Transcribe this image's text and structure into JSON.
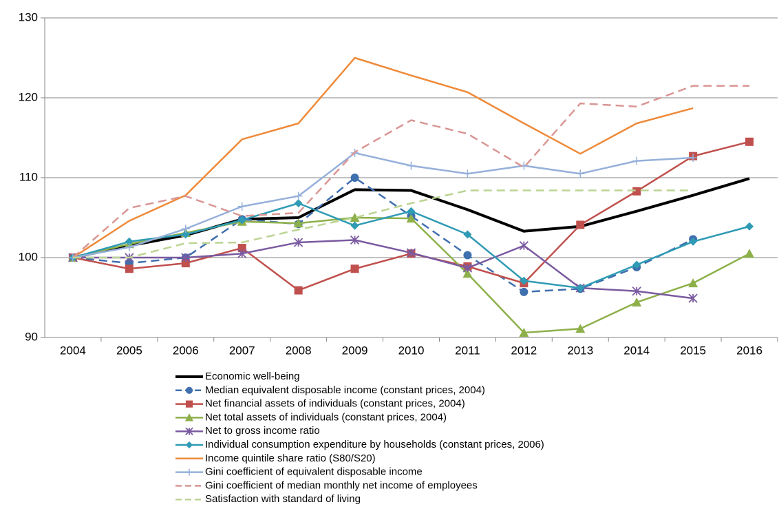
{
  "chart_data": {
    "type": "line",
    "categories": [
      "2004",
      "2005",
      "2006",
      "2007",
      "2008",
      "2009",
      "2010",
      "2011",
      "2012",
      "2013",
      "2014",
      "2015",
      "2016"
    ],
    "ylim": [
      90,
      130
    ],
    "yticks": [
      90,
      100,
      110,
      120,
      130
    ],
    "grid": true,
    "legend": "bottom",
    "series": [
      {
        "name": "Economic well-being",
        "color": "#000000",
        "line_style": "solid",
        "line_width": 4,
        "marker": "none",
        "values": [
          100,
          101.5,
          102.8,
          104.8,
          105,
          108.5,
          108.4,
          106,
          103.3,
          103.9,
          105.8,
          107.8,
          109.9
        ]
      },
      {
        "name": "Median equivalent disposable income (constant prices, 2004)",
        "color": "#3f6fae",
        "line_style": "dashed",
        "line_width": 2.5,
        "marker": "circle",
        "values": [
          100,
          99.3,
          100,
          104.8,
          104.2,
          110,
          105.2,
          100.3,
          95.7,
          96.1,
          98.8,
          102.3,
          null
        ]
      },
      {
        "name": "Net financial assets of individuals (constant prices, 2004)",
        "color": "#c0504d",
        "line_style": "solid",
        "line_width": 2.5,
        "marker": "square",
        "values": [
          100,
          98.6,
          99.3,
          101.2,
          95.9,
          98.6,
          100.5,
          98.9,
          96.8,
          104.1,
          108.3,
          112.7,
          114.5
        ]
      },
      {
        "name": "Net total assets of individuals (constant prices, 2004)",
        "color": "#8db04a",
        "line_style": "solid",
        "line_width": 2.5,
        "marker": "triangle",
        "values": [
          100,
          101.7,
          103.1,
          104.5,
          104.3,
          105,
          104.9,
          98,
          90.6,
          91.1,
          94.4,
          96.8,
          100.5
        ]
      },
      {
        "name": "Net to gross income ratio",
        "color": "#7a5aa0",
        "line_style": "solid",
        "line_width": 2.5,
        "marker": "star",
        "values": [
          100,
          100,
          100,
          100.5,
          101.9,
          102.2,
          100.6,
          98.7,
          101.5,
          96.2,
          95.8,
          94.9,
          null
        ]
      },
      {
        "name": "Individual consumption expenditure by households  (constant prices, 2006)",
        "color": "#2f9bb4",
        "line_style": "solid",
        "line_width": 2.5,
        "marker": "diamond",
        "values": [
          100,
          102,
          102.9,
          104.7,
          106.8,
          104,
          105.8,
          102.9,
          97.1,
          96.2,
          99.1,
          102,
          103.9
        ]
      },
      {
        "name": "Income quintile share ratio (S80/S20)",
        "color": "#ee8a3a",
        "line_style": "solid",
        "line_width": 2.5,
        "marker": "none",
        "values": [
          100,
          104.6,
          107.8,
          114.8,
          116.8,
          125,
          122.8,
          120.7,
          116.8,
          113,
          116.8,
          118.7,
          null
        ]
      },
      {
        "name": "Gini coefficient  of equivalent disposable income",
        "color": "#95b0da",
        "line_style": "solid",
        "line_width": 2.5,
        "marker": "plus",
        "values": [
          100,
          101.3,
          103.6,
          106.4,
          107.7,
          113.1,
          111.5,
          110.5,
          111.5,
          110.5,
          112.1,
          112.5,
          null
        ]
      },
      {
        "name": "Gini coefficient  of median monthly net income of employees",
        "color": "#d99694",
        "line_style": "dashed",
        "line_width": 2.5,
        "marker": "none",
        "values": [
          100,
          106.2,
          107.7,
          105.2,
          105.6,
          113.2,
          117.2,
          115.5,
          111.3,
          119.3,
          118.9,
          121.5,
          121.5
        ]
      },
      {
        "name": "Satisfaction with standard of living",
        "color": "#bcd493",
        "line_style": "dashed",
        "line_width": 2.5,
        "marker": "none",
        "values": [
          100,
          100,
          101.8,
          101.9,
          103.5,
          105,
          106.8,
          108.4,
          108.4,
          108.4,
          108.4,
          108.4,
          null
        ]
      }
    ]
  }
}
